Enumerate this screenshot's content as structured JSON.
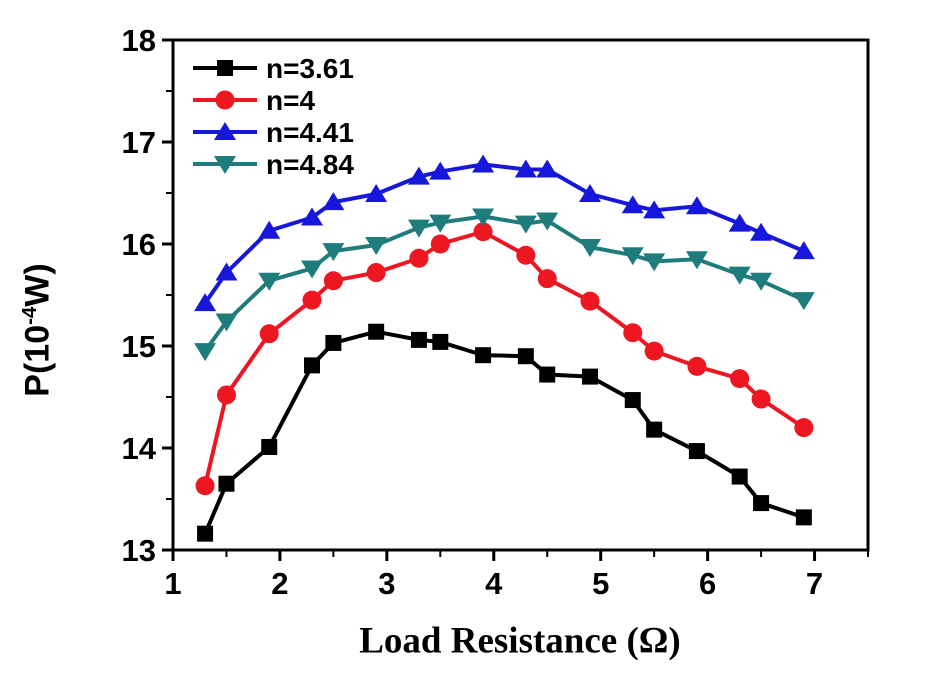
{
  "chart_data": {
    "type": "line",
    "title": "",
    "xlabel": "Load Resistance (Ω)",
    "ylabel": "P(10⁻⁴W)",
    "ylabel_parts": {
      "prefix": "P(10",
      "exponent": "-4",
      "suffix": "W)"
    },
    "xlim": [
      1,
      7.5
    ],
    "ylim": [
      13,
      18
    ],
    "x_major_ticks": [
      1,
      2,
      3,
      4,
      5,
      6,
      7
    ],
    "x_minor_ticks": [
      1.5,
      2.5,
      3.5,
      4.5,
      5.5,
      6.5,
      7.5
    ],
    "y_major_ticks": [
      13,
      14,
      15,
      16,
      17,
      18
    ],
    "y_minor_ticks": [
      13.5,
      14.5,
      15.5,
      16.5,
      17.5
    ],
    "grid": false,
    "legend_position": "top-left-inside",
    "frame": true,
    "axis_color": "#000000",
    "x": [
      1.3,
      1.5,
      1.9,
      2.3,
      2.5,
      2.9,
      3.3,
      3.5,
      3.9,
      4.3,
      4.5,
      4.9,
      5.3,
      5.5,
      5.9,
      6.3,
      6.5,
      6.9
    ],
    "series": [
      {
        "name": "n=3.61",
        "color": "#000000",
        "marker": "square",
        "values": [
          13.16,
          13.65,
          14.01,
          14.81,
          15.03,
          15.14,
          15.06,
          15.04,
          14.91,
          14.9,
          14.72,
          14.7,
          14.47,
          14.18,
          13.97,
          13.72,
          13.46,
          13.32
        ]
      },
      {
        "name": "n=4",
        "color": "#ee1620",
        "marker": "circle",
        "values": [
          13.63,
          14.52,
          15.12,
          15.45,
          15.64,
          15.72,
          15.86,
          16.0,
          16.12,
          15.89,
          15.66,
          15.44,
          15.13,
          14.95,
          14.8,
          14.68,
          14.48,
          14.2
        ]
      },
      {
        "name": "n=4.41",
        "color": "#1717dc",
        "marker": "triangle-up",
        "values": [
          15.42,
          15.72,
          16.13,
          16.26,
          16.41,
          16.49,
          16.66,
          16.71,
          16.78,
          16.73,
          16.73,
          16.49,
          16.38,
          16.33,
          16.37,
          16.2,
          16.11,
          15.93
        ]
      },
      {
        "name": "n=4.84",
        "color": "#1e7d7c",
        "marker": "triangle-down",
        "values": [
          14.95,
          15.24,
          15.64,
          15.76,
          15.93,
          15.99,
          16.16,
          16.21,
          16.27,
          16.2,
          16.23,
          15.97,
          15.89,
          15.83,
          15.85,
          15.7,
          15.64,
          15.45
        ]
      }
    ]
  }
}
